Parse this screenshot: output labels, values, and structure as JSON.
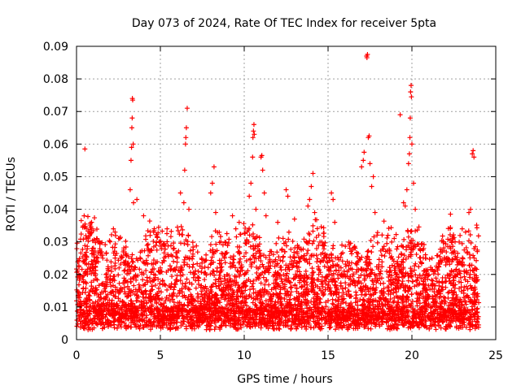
{
  "chart_data": {
    "type": "scatter",
    "title": "Day 073 of 2024, Rate Of TEC Index for receiver 5pta",
    "xlabel": "GPS time / hours",
    "ylabel": "ROTI / TECUs",
    "xlim": [
      0,
      25
    ],
    "ylim": [
      0,
      0.09
    ],
    "xticks": [
      "0",
      "5",
      "10",
      "15",
      "20",
      "25"
    ],
    "yticks": [
      "0",
      "0.01",
      "0.02",
      "0.03",
      "0.04",
      "0.05",
      "0.06",
      "0.07",
      "0.08",
      "0.09"
    ],
    "grid": true,
    "marker": "plus",
    "color": "#ff0000",
    "series": [
      {
        "points": [
          [
            0.5,
            0.0585
          ],
          [
            0.9,
            0.036
          ],
          [
            1.2,
            0.031
          ],
          [
            2.2,
            0.034
          ],
          [
            2.3,
            0.033
          ],
          [
            3.2,
            0.046
          ],
          [
            3.25,
            0.055
          ],
          [
            3.28,
            0.059
          ],
          [
            3.3,
            0.065
          ],
          [
            3.32,
            0.068
          ],
          [
            3.33,
            0.074
          ],
          [
            3.35,
            0.0735
          ],
          [
            3.38,
            0.06
          ],
          [
            3.4,
            0.042
          ],
          [
            3.6,
            0.043
          ],
          [
            4.0,
            0.038
          ],
          [
            4.6,
            0.033
          ],
          [
            5.4,
            0.034
          ],
          [
            6.2,
            0.045
          ],
          [
            6.4,
            0.042
          ],
          [
            6.45,
            0.052
          ],
          [
            6.5,
            0.06
          ],
          [
            6.52,
            0.062
          ],
          [
            6.55,
            0.065
          ],
          [
            6.6,
            0.071
          ],
          [
            6.7,
            0.04
          ],
          [
            8.0,
            0.045
          ],
          [
            8.1,
            0.048
          ],
          [
            8.2,
            0.053
          ],
          [
            8.3,
            0.039
          ],
          [
            9.3,
            0.038
          ],
          [
            9.5,
            0.034
          ],
          [
            9.7,
            0.036
          ],
          [
            10.3,
            0.044
          ],
          [
            10.4,
            0.048
          ],
          [
            10.5,
            0.056
          ],
          [
            10.52,
            0.062
          ],
          [
            10.55,
            0.064
          ],
          [
            10.58,
            0.066
          ],
          [
            10.6,
            0.063
          ],
          [
            10.7,
            0.04
          ],
          [
            11.0,
            0.056
          ],
          [
            11.05,
            0.0565
          ],
          [
            11.1,
            0.052
          ],
          [
            11.2,
            0.045
          ],
          [
            11.3,
            0.038
          ],
          [
            12.0,
            0.036
          ],
          [
            12.5,
            0.046
          ],
          [
            12.6,
            0.044
          ],
          [
            13.0,
            0.037
          ],
          [
            13.8,
            0.041
          ],
          [
            13.9,
            0.043
          ],
          [
            14.0,
            0.047
          ],
          [
            14.1,
            0.051
          ],
          [
            14.2,
            0.039
          ],
          [
            15.2,
            0.045
          ],
          [
            15.3,
            0.043
          ],
          [
            15.4,
            0.036
          ],
          [
            17.0,
            0.053
          ],
          [
            17.1,
            0.055
          ],
          [
            17.15,
            0.0575
          ],
          [
            17.3,
            0.087
          ],
          [
            17.32,
            0.0865
          ],
          [
            17.35,
            0.0875
          ],
          [
            17.4,
            0.062
          ],
          [
            17.45,
            0.0625
          ],
          [
            17.5,
            0.054
          ],
          [
            17.6,
            0.047
          ],
          [
            17.7,
            0.05
          ],
          [
            17.8,
            0.039
          ],
          [
            19.3,
            0.069
          ],
          [
            19.5,
            0.042
          ],
          [
            19.6,
            0.041
          ],
          [
            19.7,
            0.046
          ],
          [
            19.8,
            0.054
          ],
          [
            19.85,
            0.057
          ],
          [
            19.88,
            0.062
          ],
          [
            19.9,
            0.068
          ],
          [
            19.92,
            0.076
          ],
          [
            19.95,
            0.078
          ],
          [
            19.97,
            0.0745
          ],
          [
            20.0,
            0.06
          ],
          [
            20.1,
            0.048
          ],
          [
            20.2,
            0.04
          ],
          [
            20.7,
            0.028
          ],
          [
            21.2,
            0.025
          ],
          [
            21.5,
            0.022
          ],
          [
            22.3,
            0.0385
          ],
          [
            23.0,
            0.034
          ],
          [
            23.2,
            0.033
          ],
          [
            23.4,
            0.039
          ],
          [
            23.5,
            0.04
          ],
          [
            23.6,
            0.057
          ],
          [
            23.65,
            0.058
          ],
          [
            23.7,
            0.056
          ],
          [
            23.9,
            0.027
          ]
        ]
      }
    ]
  }
}
